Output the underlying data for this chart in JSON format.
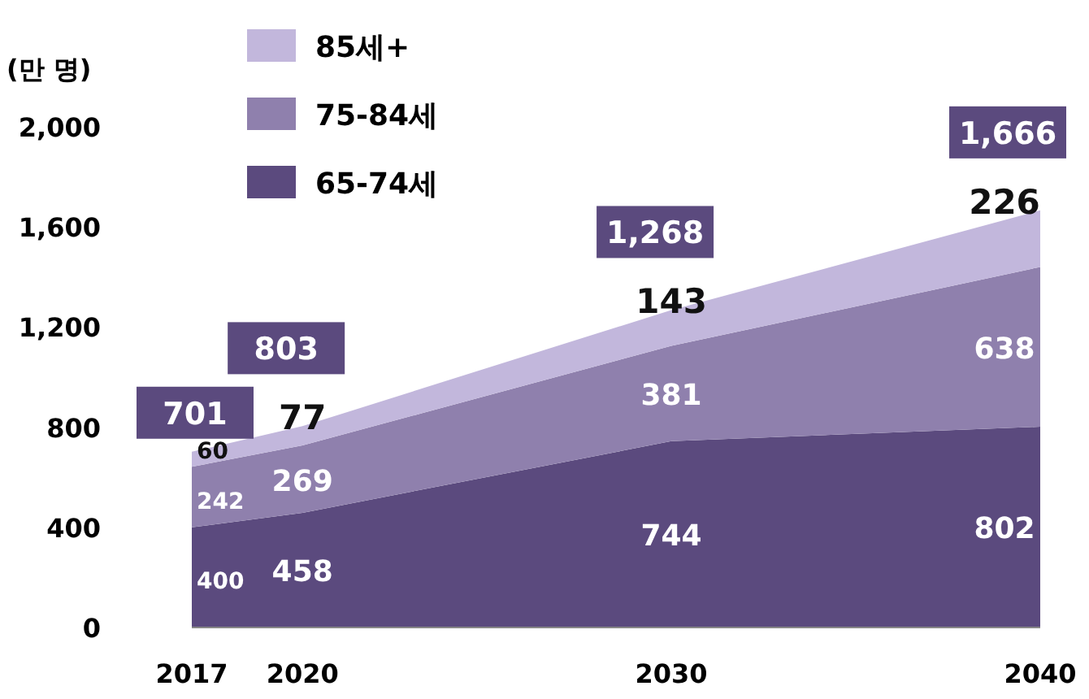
{
  "chart_data": {
    "type": "area",
    "stacked": true,
    "ylabel": "(만 명)",
    "x": [
      2017,
      2020,
      2030,
      2040
    ],
    "series": [
      {
        "name": "65-74세",
        "color": "#5b4a7e",
        "values": [
          400,
          458,
          744,
          802
        ]
      },
      {
        "name": "75-84세",
        "color": "#8f80ad",
        "values": [
          242,
          269,
          381,
          638
        ]
      },
      {
        "name": "85세+",
        "color": "#c2b7dc",
        "values": [
          60,
          77,
          143,
          226
        ]
      }
    ],
    "totals": [
      "701",
      "803",
      "1,268",
      "1,666"
    ],
    "data_labels": true,
    "legend": "top left",
    "xlim": [
      2017,
      2040
    ],
    "ylim": [
      0,
      2000
    ],
    "xticks": [
      2017,
      2020,
      2030,
      2040
    ],
    "yticks": [
      0,
      400,
      800,
      {
        "value": 1200,
        "label": "1,200"
      },
      {
        "value": 1600,
        "label": "1,600"
      },
      {
        "value": 2000,
        "label": "2,000"
      }
    ]
  }
}
